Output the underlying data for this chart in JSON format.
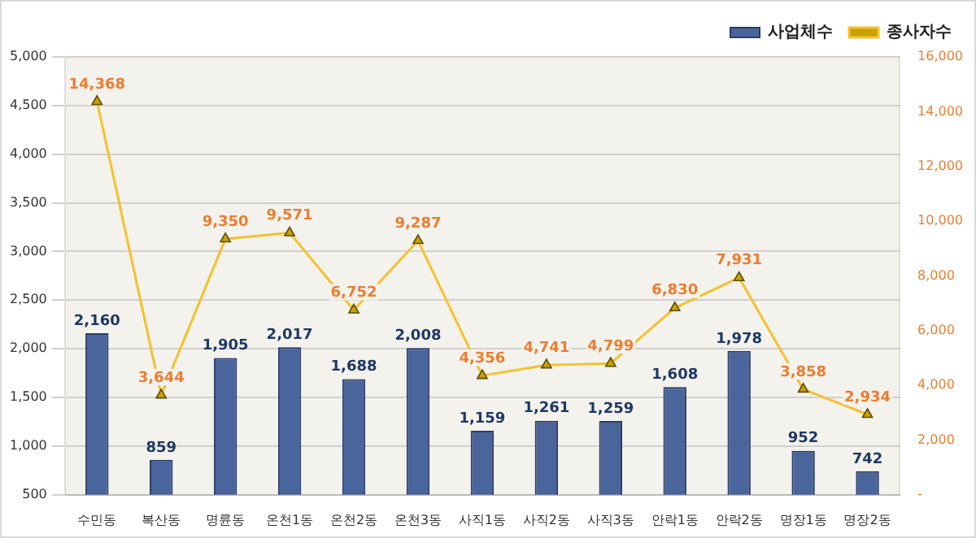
{
  "chart_data": {
    "type": "bar",
    "categories": [
      "수민동",
      "복산동",
      "명륜동",
      "온천1동",
      "온천2동",
      "온천3동",
      "사직1동",
      "사직2동",
      "사직3동",
      "안락1동",
      "안락2동",
      "명장1동",
      "명장2동"
    ],
    "series": [
      {
        "name": "사업체수",
        "color": "#4a649c",
        "values": [
          2160,
          859,
          1905,
          2017,
          1688,
          2008,
          1159,
          1261,
          1259,
          1608,
          1978,
          952,
          742
        ],
        "value_labels": [
          "2,160",
          "859",
          "1,905",
          "2,017",
          "1,688",
          "2,008",
          "1,159",
          "1,261",
          "1,259",
          "1,608",
          "1,978",
          "952",
          "742"
        ]
      },
      {
        "name": "종사자수",
        "type": "line",
        "axis": "y2",
        "color": "#f5c12e",
        "marker": "triangle",
        "values": [
          14368,
          3644,
          9350,
          9571,
          6752,
          9287,
          4356,
          4741,
          4799,
          6830,
          7931,
          3858,
          2934
        ],
        "value_labels": [
          "14,368",
          "3,644",
          "9,350",
          "9,571",
          "6,752",
          "9,287",
          "4,356",
          "4,741",
          "4,799",
          "6,830",
          "7,931",
          "3,858",
          "2,934"
        ]
      }
    ],
    "ylim": [
      500,
      5000
    ],
    "yticks": [
      500,
      {
        "value": 1000,
        "label": "1,000"
      },
      {
        "value": 1500,
        "label": "1,500"
      },
      {
        "value": 2000,
        "label": "2,000"
      },
      {
        "value": 2500,
        "label": "2,500"
      },
      {
        "value": 3000,
        "label": "3,000"
      },
      {
        "value": 3500,
        "label": "3,500"
      },
      {
        "value": 4000,
        "label": "4,000"
      },
      {
        "value": 4500,
        "label": "4,500"
      },
      {
        "value": 5000,
        "label": "5,000"
      }
    ],
    "y2lim": [
      0,
      16000
    ],
    "y2ticks": [
      {
        "value": 0,
        "label": "-"
      },
      {
        "value": 2000,
        "label": "2,000"
      },
      {
        "value": 4000,
        "label": "4,000"
      },
      {
        "value": 6000,
        "label": "6,000"
      },
      {
        "value": 8000,
        "label": "8,000"
      },
      {
        "value": 10000,
        "label": "10,000"
      },
      {
        "value": 12000,
        "label": "12,000"
      },
      {
        "value": 14000,
        "label": "14,000"
      },
      {
        "value": 16000,
        "label": "16,000"
      }
    ],
    "grid": "y",
    "legend": "top right"
  }
}
